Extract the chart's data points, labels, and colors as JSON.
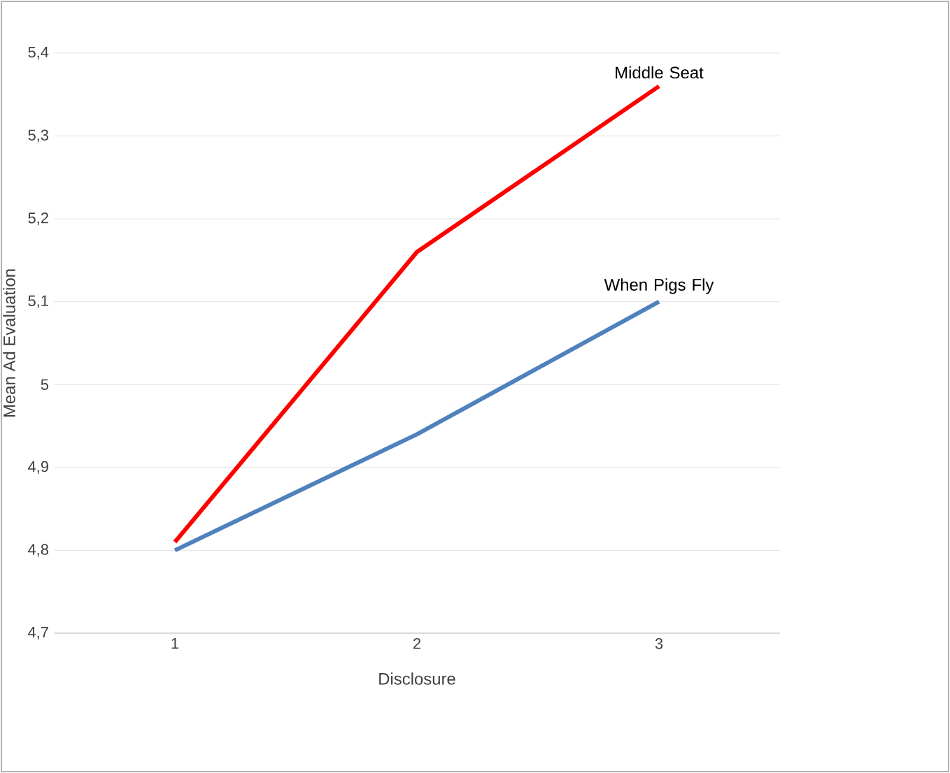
{
  "chart_data": {
    "type": "line",
    "xlabel": "Disclosure",
    "ylabel": "Mean Ad Evaluation",
    "categories": [
      "1",
      "2",
      "3"
    ],
    "series": [
      {
        "name": "Middle Seat",
        "color": "#ff0000",
        "values": [
          4.81,
          5.16,
          5.36
        ]
      },
      {
        "name": "When Pigs Fly",
        "color": "#4f81bd",
        "values": [
          4.8,
          4.94,
          5.1
        ]
      }
    ],
    "ylim": [
      4.7,
      5.4
    ],
    "yticks": [
      {
        "value": 4.7,
        "label": "4,7"
      },
      {
        "value": 4.8,
        "label": "4,8"
      },
      {
        "value": 4.9,
        "label": "4,9"
      },
      5,
      {
        "value": 5.1,
        "label": "5,1"
      },
      {
        "value": 5.2,
        "label": "5,2"
      },
      {
        "value": 5.3,
        "label": "5,3"
      },
      {
        "value": 5.4,
        "label": "5,4"
      }
    ],
    "grid": "y",
    "legend": false
  }
}
